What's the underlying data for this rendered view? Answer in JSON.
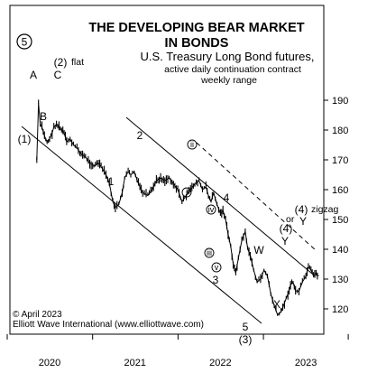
{
  "chart_data": {
    "type": "line",
    "title_lines": [
      "THE DEVELOPING BEAR MARKET",
      "IN BONDS"
    ],
    "subtitle_lines": [
      "U.S. Treasury Long Bond futures,",
      "active daily continuation contract",
      "weekly range"
    ],
    "x_ticks": [
      "2020",
      "2021",
      "2022",
      "2023"
    ],
    "y_ticks": [
      120,
      130,
      140,
      150,
      160,
      170,
      180,
      190
    ],
    "ylim": [
      113,
      198
    ],
    "series": [
      {
        "x": [
          2019.85,
          2019.87,
          2019.89,
          2019.91,
          2019.94,
          2019.97,
          2020.0,
          2020.03,
          2020.05,
          2020.08,
          2020.11,
          2020.14,
          2020.17,
          2020.2,
          2020.24,
          2020.28,
          2020.32,
          2020.37,
          2020.42,
          2020.47,
          2020.52,
          2020.57,
          2020.62,
          2020.66,
          2020.7,
          2020.74,
          2020.77,
          2020.81,
          2020.85,
          2020.88,
          2020.92,
          2020.95,
          2020.99,
          2021.04,
          2021.09,
          2021.15,
          2021.2,
          2021.25,
          2021.3,
          2021.35,
          2021.4,
          2021.45,
          2021.5,
          2021.55,
          2021.6,
          2021.65,
          2021.7,
          2021.75,
          2021.79,
          2021.83,
          2021.86,
          2021.89,
          2021.92,
          2021.96,
          2022.0,
          2022.03,
          2022.06,
          2022.09,
          2022.12,
          2022.15,
          2022.18,
          2022.21,
          2022.25,
          2022.29,
          2022.32,
          2022.35,
          2022.39,
          2022.43,
          2022.47,
          2022.51,
          2022.55,
          2022.59,
          2022.63,
          2022.67,
          2022.71,
          2022.75,
          2022.79,
          2022.82,
          2022.85,
          2022.88,
          2022.92,
          2022.96,
          2023.0,
          2023.03,
          2023.06,
          2023.09,
          2023.12,
          2023.15
        ],
        "y": [
          170,
          189,
          182,
          181,
          178,
          176,
          177,
          179,
          181,
          182,
          181,
          180,
          179,
          176,
          177,
          175,
          174,
          172,
          171,
          169,
          168,
          169,
          167,
          165,
          162,
          156,
          154,
          155,
          159,
          164,
          166,
          165,
          166,
          162,
          159,
          158,
          160,
          163,
          164,
          163,
          164,
          162,
          160,
          156,
          158,
          160,
          162,
          163,
          160,
          161,
          158,
          156,
          159,
          155,
          152,
          153,
          150,
          145,
          141,
          135,
          132,
          137,
          143,
          146,
          140,
          138,
          133,
          129,
          130,
          133,
          131,
          125,
          121,
          118,
          119,
          122,
          125,
          128,
          129,
          126,
          126,
          129,
          131,
          134,
          133,
          131,
          132,
          131
        ]
      }
    ],
    "labels": {
      "top_5": "5",
      "two_flat_num": "(2)",
      "two_flat_word": "flat",
      "A": "A",
      "B": "B",
      "C": "C",
      "one_paren": "(1)",
      "one": "1",
      "two": "2",
      "i": "i",
      "ii": "ii",
      "iii": "iii",
      "iv": "iv",
      "v": "v",
      "three": "3",
      "four": "4",
      "five": "5",
      "three_paren": "(3)",
      "W": "W",
      "X": "X",
      "Y": "Y",
      "four_paren_a": "(4)",
      "four_paren_b": "(4)",
      "zigzag": "zigzag",
      "or": "or"
    },
    "credit_lines": [
      "© April 2023",
      "Elliott Wave International (www.elliottwave.com)"
    ]
  },
  "colors": {
    "price": "#000000",
    "channel": "#000000",
    "background": "#ffffff"
  }
}
